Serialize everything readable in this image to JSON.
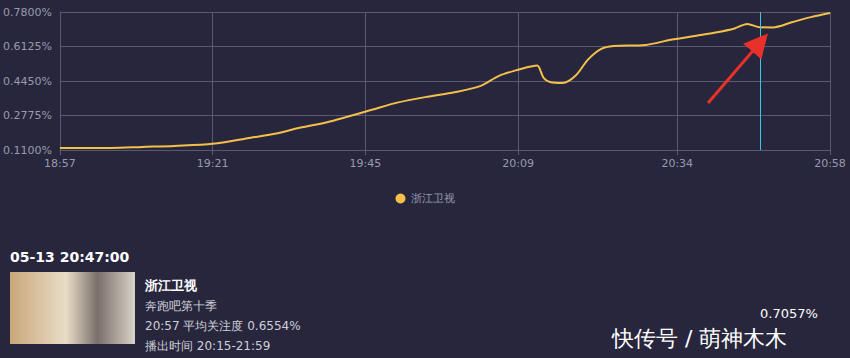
{
  "chart_data": {
    "type": "line",
    "x": [
      1137,
      1141,
      1145,
      1150,
      1155,
      1161,
      1167,
      1171,
      1175,
      1179,
      1182,
      1186,
      1190,
      1195,
      1199,
      1203,
      1206,
      1209,
      1211,
      1212,
      1213,
      1214,
      1216,
      1218,
      1220,
      1222,
      1224,
      1229,
      1233,
      1237,
      1240,
      1243,
      1245,
      1247,
      1249,
      1252,
      1255,
      1258
    ],
    "series": [
      {
        "name": "浙江卫视",
        "color": "#f4c04a",
        "values": [
          0.12,
          0.12,
          0.12,
          0.125,
          0.13,
          0.14,
          0.17,
          0.19,
          0.22,
          0.245,
          0.27,
          0.305,
          0.34,
          0.37,
          0.39,
          0.42,
          0.47,
          0.5,
          0.515,
          0.52,
          0.46,
          0.44,
          0.435,
          0.47,
          0.55,
          0.6,
          0.615,
          0.62,
          0.645,
          0.665,
          0.68,
          0.7,
          0.722,
          0.7057,
          0.705,
          0.73,
          0.755,
          0.775
        ]
      }
    ],
    "xlim": [
      1137,
      1258
    ],
    "xticks": [
      {
        "value": 1137,
        "label": "18:57"
      },
      {
        "value": 1161,
        "label": "19:21"
      },
      {
        "value": 1185,
        "label": "19:45"
      },
      {
        "value": 1209,
        "label": "20:09"
      },
      {
        "value": 1234,
        "label": "20:34"
      },
      {
        "value": 1258,
        "label": "20:58"
      }
    ],
    "ylim": [
      0.11,
      0.78
    ],
    "yticks": [
      {
        "value": 0.11,
        "label": "0.1100%"
      },
      {
        "value": 0.2775,
        "label": "0.2775%"
      },
      {
        "value": 0.445,
        "label": "0.4450%"
      },
      {
        "value": 0.6125,
        "label": "0.6125%"
      },
      {
        "value": 0.78,
        "label": "0.7800%"
      }
    ],
    "grid": true,
    "legend": "bottom",
    "cursor": {
      "x": 1247,
      "value": 0.7057,
      "label": "0.7057%"
    }
  },
  "panel": {
    "time": "05-13 20:47:00",
    "channel": "浙江卫视",
    "program": "奔跑吧第十季",
    "average": "20:57 平均关注度 0.6554%",
    "airtime": "播出时间 20:15-21:59"
  },
  "watermark": "快传号 / 萌神木木"
}
